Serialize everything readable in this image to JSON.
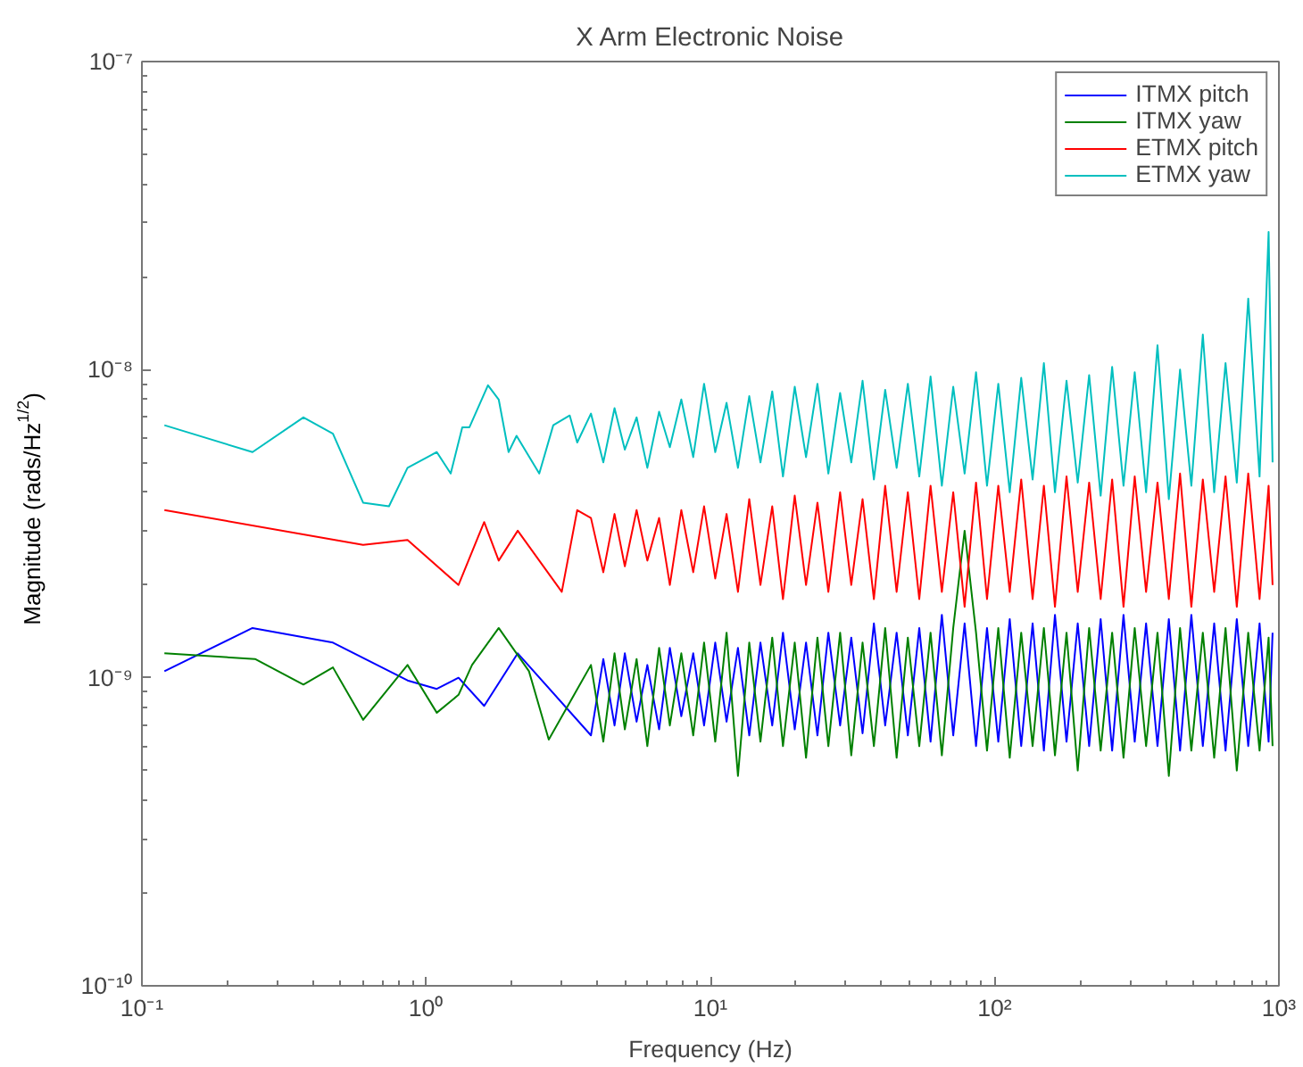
{
  "chart_data": {
    "type": "line",
    "title": "X Arm Electronic Noise",
    "xlabel": "Frequency (Hz)",
    "ylabel": "Magnitude (rads/Hz$^{1/2}$)",
    "log": "xy",
    "xlim": [
      0.1,
      1000
    ],
    "ylim": [
      1e-10,
      1e-07
    ],
    "xticks": [
      {
        "value": 0.1,
        "label": "10⁻¹"
      },
      {
        "value": 1,
        "label": "10⁰"
      },
      {
        "value": 10,
        "label": "10¹"
      },
      {
        "value": 100,
        "label": "10²"
      },
      {
        "value": 1000,
        "label": "10³"
      }
    ],
    "yticks": [
      {
        "value": 1e-10,
        "label": "10⁻¹⁰"
      },
      {
        "value": 1e-09,
        "label": "10⁻⁹"
      },
      {
        "value": 1e-08,
        "label": "10⁻⁸"
      },
      {
        "value": 1e-07,
        "label": "10⁻⁷"
      }
    ],
    "grid": false,
    "legend": "top right",
    "marker": "none",
    "line_style": "solid",
    "series": [
      {
        "name": "ITMX pitch",
        "color": "#0000ff",
        "x": [
          0.12,
          0.245,
          0.47,
          0.86,
          1.09,
          1.3,
          1.6,
          2.1,
          3.8,
          4.2,
          4.6,
          5.0,
          5.5,
          6.0,
          6.6,
          7.2,
          7.9,
          8.7,
          9.5,
          10.4,
          11.4,
          12.5,
          13.7,
          15,
          16.5,
          18,
          19.8,
          21.7,
          23.8,
          26,
          28.6,
          31.3,
          34.3,
          37.6,
          41.2,
          45.2,
          49.5,
          54.3,
          59.5,
          65.2,
          71.5,
          78.4,
          86,
          94,
          103,
          113,
          124,
          136,
          149,
          163,
          179,
          196,
          215,
          236,
          259,
          284,
          311,
          341,
          374,
          410,
          449,
          492,
          540,
          592,
          649,
          711,
          780,
          855,
          920,
          950
        ],
        "values": [
          1.05e-09,
          1.45e-09,
          1.3e-09,
          9.8e-10,
          9.2e-10,
          1e-09,
          8.1e-10,
          1.2e-09,
          6.5e-10,
          1.15e-09,
          7e-10,
          1.2e-09,
          7.2e-10,
          1.1e-09,
          6.8e-10,
          1.25e-09,
          7.5e-10,
          1.2e-09,
          7e-10,
          1.3e-09,
          7.2e-10,
          1.25e-09,
          6.5e-10,
          1.3e-09,
          7e-10,
          1.4e-09,
          6.8e-10,
          1.3e-09,
          6.5e-10,
          1.4e-09,
          7e-10,
          1.35e-09,
          6.6e-10,
          1.5e-09,
          7e-10,
          1.4e-09,
          6.5e-10,
          1.45e-09,
          6.2e-10,
          1.6e-09,
          6.5e-10,
          1.5e-09,
          6e-10,
          1.45e-09,
          6.2e-10,
          1.55e-09,
          6e-10,
          1.5e-09,
          5.8e-10,
          1.6e-09,
          6.2e-10,
          1.5e-09,
          6e-10,
          1.55e-09,
          5.8e-10,
          1.6e-09,
          6.2e-10,
          1.5e-09,
          6e-10,
          1.55e-09,
          5.8e-10,
          1.6e-09,
          6e-10,
          1.5e-09,
          5.8e-10,
          1.55e-09,
          6e-10,
          1.5e-09,
          6.2e-10,
          1.4e-09
        ]
      },
      {
        "name": "ITMX yaw",
        "color": "#008000",
        "x": [
          0.12,
          0.25,
          0.37,
          0.47,
          0.6,
          0.86,
          1.09,
          1.3,
          1.45,
          1.8,
          2.3,
          2.7,
          3.8,
          4.2,
          4.6,
          5.0,
          5.5,
          6.0,
          6.6,
          7.2,
          7.9,
          8.7,
          9.5,
          10.4,
          11.4,
          12.5,
          13.7,
          15,
          16.5,
          18,
          19.8,
          21.7,
          23.8,
          26,
          28.6,
          31.3,
          34.3,
          37.6,
          41.2,
          45.2,
          49.5,
          54.3,
          59.5,
          65.2,
          71.5,
          78.4,
          86,
          94,
          103,
          113,
          124,
          136,
          149,
          163,
          179,
          196,
          215,
          236,
          259,
          284,
          311,
          341,
          374,
          410,
          449,
          492,
          540,
          592,
          649,
          711,
          780,
          855,
          920,
          950
        ],
        "values": [
          1.2e-09,
          1.15e-09,
          9.5e-10,
          1.08e-09,
          7.3e-10,
          1.1e-09,
          7.7e-10,
          8.8e-10,
          1.1e-09,
          1.45e-09,
          1.05e-09,
          6.3e-10,
          1.1e-09,
          6.2e-10,
          1.2e-09,
          6.8e-10,
          1.15e-09,
          6e-10,
          1.25e-09,
          7e-10,
          1.2e-09,
          6.5e-10,
          1.3e-09,
          6.2e-10,
          1.4e-09,
          4.8e-10,
          1.3e-09,
          6.2e-10,
          1.35e-09,
          6e-10,
          1.3e-09,
          5.5e-10,
          1.35e-09,
          6e-10,
          1.4e-09,
          5.6e-10,
          1.3e-09,
          6e-10,
          1.45e-09,
          5.5e-10,
          1.35e-09,
          6e-10,
          1.4e-09,
          5.6e-10,
          1.45e-09,
          3e-09,
          1.4e-09,
          5.8e-10,
          1.45e-09,
          5.5e-10,
          1.4e-09,
          6e-10,
          1.45e-09,
          5.6e-10,
          1.4e-09,
          5e-10,
          1.45e-09,
          5.8e-10,
          1.4e-09,
          5.5e-10,
          1.45e-09,
          6e-10,
          1.4e-09,
          4.8e-10,
          1.45e-09,
          5.8e-10,
          1.4e-09,
          5.5e-10,
          1.45e-09,
          5e-10,
          1.4e-09,
          5.8e-10,
          1.35e-09,
          6e-10
        ]
      },
      {
        "name": "ETMX pitch",
        "color": "#ff0000",
        "x": [
          0.12,
          0.6,
          0.86,
          1.3,
          1.6,
          1.8,
          2.1,
          2.5,
          3.0,
          3.4,
          3.8,
          4.2,
          4.6,
          5.0,
          5.5,
          6.0,
          6.6,
          7.2,
          7.9,
          8.7,
          9.5,
          10.4,
          11.4,
          12.5,
          13.7,
          15,
          16.5,
          18,
          19.8,
          21.7,
          23.8,
          26,
          28.6,
          31.3,
          34.3,
          37.6,
          41.2,
          45.2,
          49.5,
          54.3,
          59.5,
          65.2,
          71.5,
          78.4,
          86,
          94,
          103,
          113,
          124,
          136,
          149,
          163,
          179,
          196,
          215,
          236,
          259,
          284,
          311,
          341,
          374,
          410,
          449,
          492,
          540,
          592,
          649,
          711,
          780,
          855,
          920,
          950
        ],
        "values": [
          3.5e-09,
          2.7e-09,
          2.8e-09,
          2e-09,
          3.2e-09,
          2.4e-09,
          3e-09,
          2.4e-09,
          1.9e-09,
          3.5e-09,
          3.3e-09,
          2.2e-09,
          3.4e-09,
          2.3e-09,
          3.5e-09,
          2.4e-09,
          3.3e-09,
          2e-09,
          3.5e-09,
          2.2e-09,
          3.6e-09,
          2.1e-09,
          3.4e-09,
          1.9e-09,
          3.8e-09,
          2e-09,
          3.6e-09,
          1.8e-09,
          3.9e-09,
          2e-09,
          3.7e-09,
          1.9e-09,
          4e-09,
          2e-09,
          3.8e-09,
          1.8e-09,
          4.2e-09,
          1.9e-09,
          4e-09,
          1.8e-09,
          4.2e-09,
          1.9e-09,
          4e-09,
          1.7e-09,
          4.3e-09,
          1.8e-09,
          4.2e-09,
          1.9e-09,
          4.4e-09,
          1.8e-09,
          4.2e-09,
          1.7e-09,
          4.5e-09,
          1.9e-09,
          4.3e-09,
          1.8e-09,
          4.4e-09,
          1.7e-09,
          4.5e-09,
          1.9e-09,
          4.3e-09,
          1.8e-09,
          4.6e-09,
          1.7e-09,
          4.4e-09,
          1.9e-09,
          4.5e-09,
          1.7e-09,
          4.6e-09,
          1.8e-09,
          4.2e-09,
          2e-09
        ]
      },
      {
        "name": "ETMX yaw",
        "color": "#00bfbf",
        "x": [
          0.12,
          0.245,
          0.37,
          0.47,
          0.6,
          0.74,
          0.86,
          1.09,
          1.22,
          1.34,
          1.42,
          1.65,
          1.8,
          1.95,
          2.08,
          2.5,
          2.8,
          3.2,
          3.4,
          3.8,
          4.2,
          4.6,
          5.0,
          5.5,
          6.0,
          6.6,
          7.2,
          7.9,
          8.7,
          9.5,
          10.4,
          11.4,
          12.5,
          13.7,
          15,
          16.5,
          18,
          19.8,
          21.7,
          23.8,
          26,
          28.6,
          31.3,
          34.3,
          37.6,
          41.2,
          45.2,
          49.5,
          54.3,
          59.5,
          65.2,
          71.5,
          78.4,
          86,
          94,
          103,
          113,
          124,
          136,
          149,
          163,
          179,
          196,
          215,
          236,
          259,
          284,
          311,
          341,
          374,
          410,
          449,
          492,
          540,
          592,
          649,
          711,
          780,
          855,
          920,
          950
        ],
        "values": [
          6.6e-09,
          5.4e-09,
          7e-09,
          6.2e-09,
          3.7e-09,
          3.6e-09,
          4.8e-09,
          5.4e-09,
          4.6e-09,
          6.5e-09,
          6.5e-09,
          8.9e-09,
          8e-09,
          5.4e-09,
          6.1e-09,
          4.6e-09,
          6.6e-09,
          7.1e-09,
          5.8e-09,
          7.2e-09,
          5e-09,
          7.5e-09,
          5.5e-09,
          7e-09,
          4.8e-09,
          7.3e-09,
          5.6e-09,
          8e-09,
          5.2e-09,
          9e-09,
          5.4e-09,
          7.8e-09,
          4.8e-09,
          8.2e-09,
          5e-09,
          8.5e-09,
          4.5e-09,
          8.8e-09,
          5.2e-09,
          9e-09,
          4.6e-09,
          8.4e-09,
          5e-09,
          9.2e-09,
          4.4e-09,
          8.6e-09,
          4.8e-09,
          9e-09,
          4.5e-09,
          9.5e-09,
          4.2e-09,
          8.8e-09,
          4.6e-09,
          9.8e-09,
          4.2e-09,
          9e-09,
          4e-09,
          9.4e-09,
          4.4e-09,
          1.05e-08,
          4e-09,
          9.2e-09,
          4.3e-09,
          9.6e-09,
          3.9e-09,
          1.02e-08,
          4.2e-09,
          9.8e-09,
          4e-09,
          1.2e-08,
          3.8e-09,
          1e-08,
          4.2e-09,
          1.3e-08,
          4e-09,
          1.05e-08,
          4.3e-09,
          1.7e-08,
          4.5e-09,
          2.8e-08,
          5e-09
        ]
      }
    ]
  }
}
